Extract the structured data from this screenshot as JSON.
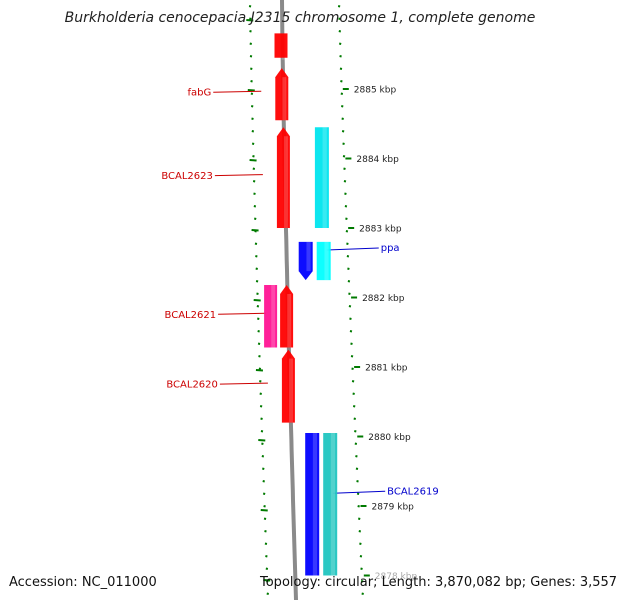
{
  "title": "Burkholderia cenocepacia J2315 chromosome 1, complete genome",
  "accession": "Accession: NC_011000",
  "summary": "Topology: circular; Length: 3,870,082 bp; Genes: 3,557",
  "colors": {
    "backbone": "#8a8a8a",
    "tick": "#007a00",
    "label_red": "#cc0000",
    "label_blue": "#0000cc"
  },
  "scale_labels": [
    {
      "name": "2885 kbp",
      "kbp": 2885
    },
    {
      "name": "2884 kbp",
      "kbp": 2884
    },
    {
      "name": "2883 kbp",
      "kbp": 2883
    },
    {
      "name": "2882 kbp",
      "kbp": 2882
    },
    {
      "name": "2881 kbp",
      "kbp": 2881
    },
    {
      "name": "2880 kbp",
      "kbp": 2880
    },
    {
      "name": "2879 kbp",
      "kbp": 2879
    },
    {
      "name": "2878 kbp",
      "kbp": 2878
    }
  ],
  "features": [
    {
      "label": "",
      "strand": "+",
      "start_kbp": 2885.8,
      "end_kbp": 2885.45,
      "color": "#ff0000",
      "arrow": false
    },
    {
      "label": "fabG",
      "strand": "+",
      "start_kbp": 2884.55,
      "end_kbp": 2885.3,
      "color": "#ff0000",
      "arrow": true
    },
    {
      "label": "BCAL2623",
      "strand": "+",
      "start_kbp": 2883.0,
      "end_kbp": 2884.45,
      "color": "#ff0000",
      "arrow": true
    },
    {
      "label": "",
      "strand": "-",
      "start_kbp": 2883.0,
      "end_kbp": 2884.45,
      "color": "#00e5ee",
      "arrow": false
    },
    {
      "label": "ppa",
      "strand": "-",
      "start_kbp": 2882.25,
      "end_kbp": 2882.8,
      "color": "#0000ff",
      "arrow": true
    },
    {
      "label": "",
      "strand": "-",
      "start_kbp": 2882.25,
      "end_kbp": 2882.8,
      "color": "#00ffff",
      "arrow": false
    },
    {
      "label": "BCAL2621",
      "strand": "+",
      "start_kbp": 2881.28,
      "end_kbp": 2882.18,
      "color": "#ff0000",
      "arrow": true
    },
    {
      "label": "",
      "strand": "+",
      "start_kbp": 2881.28,
      "end_kbp": 2882.18,
      "color": "#ff1493",
      "arrow": false
    },
    {
      "label": "BCAL2620",
      "strand": "+",
      "start_kbp": 2880.2,
      "end_kbp": 2881.25,
      "color": "#ff0000",
      "arrow": true
    },
    {
      "label": "BCAL2619",
      "strand": "-",
      "start_kbp": 2878.0,
      "end_kbp": 2880.05,
      "color": "#0000ff",
      "arrow": false
    },
    {
      "label": "",
      "strand": "-",
      "start_kbp": 2878.0,
      "end_kbp": 2880.05,
      "color": "#20c5c0",
      "arrow": false
    }
  ]
}
